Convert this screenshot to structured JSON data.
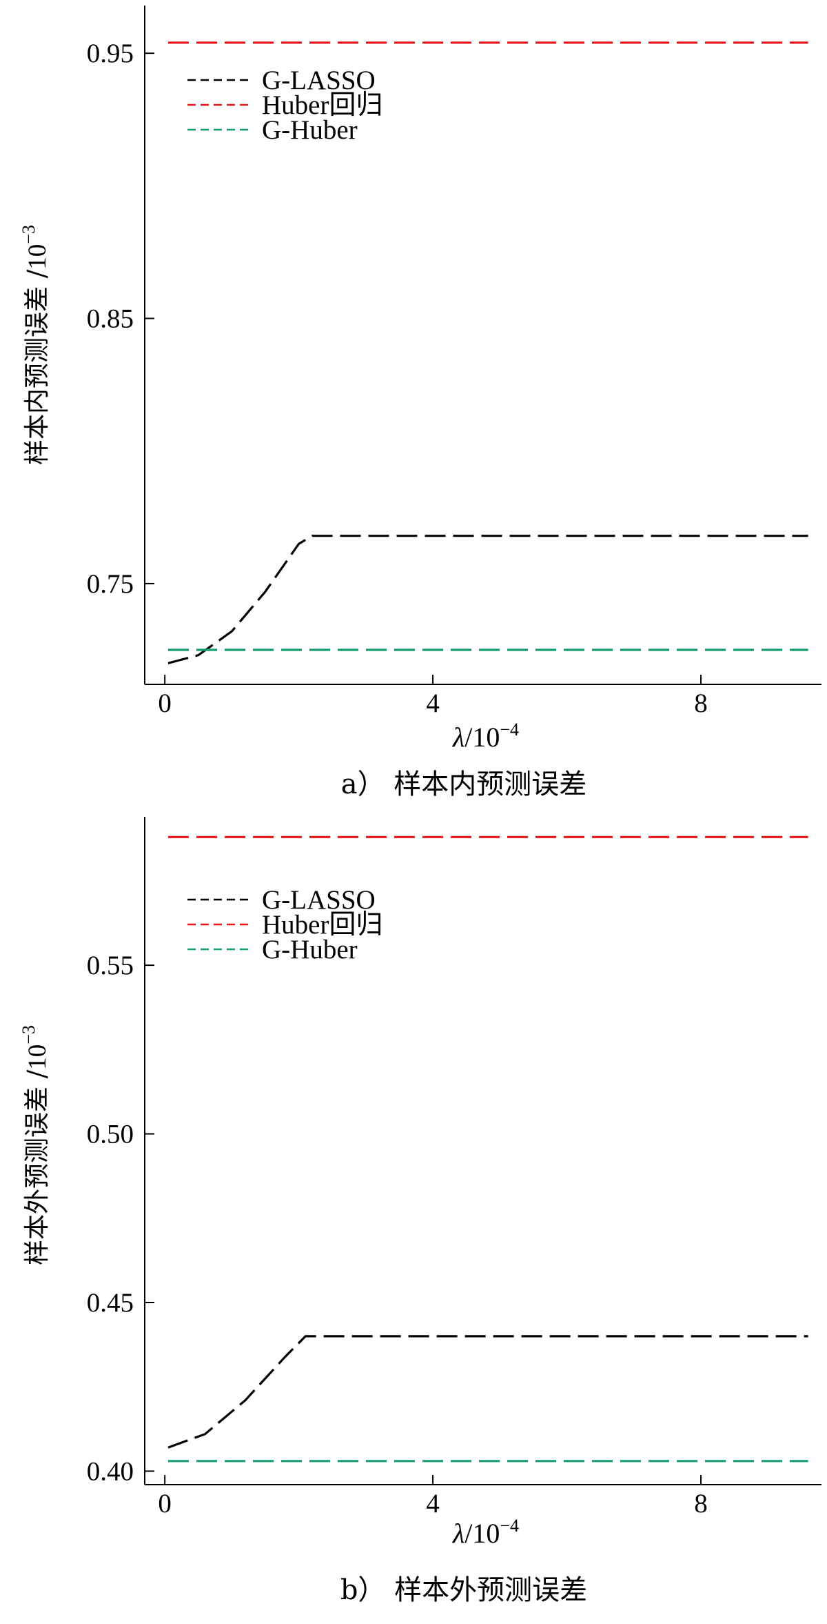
{
  "chart_data": [
    {
      "type": "line",
      "panel_caption": "a）  样本内预测误差",
      "ylabel_prefix": "样本内预测误差 /",
      "y_unit_base": "10",
      "y_unit_exp": "−3",
      "x_symbol": "λ",
      "x_unit_text": "/10",
      "x_unit_exp": "−4",
      "xlim": [
        -0.3,
        9.8
      ],
      "ylim": [
        0.712,
        0.968
      ],
      "xticks": [
        0,
        4,
        8
      ],
      "xtick_labels": [
        "0",
        "4",
        "8"
      ],
      "yticks": [
        0.75,
        0.85,
        0.95
      ],
      "ytick_labels": [
        "0.75",
        "0.85",
        "0.95"
      ],
      "legend_position": "top-left",
      "grid": false,
      "series": [
        {
          "name": "G-LASSO",
          "color": "#000000",
          "x": [
            0.05,
            0.5,
            1.0,
            1.5,
            2.0,
            2.2,
            3,
            4,
            5,
            6,
            7,
            8,
            9,
            9.6
          ],
          "y": [
            0.72,
            0.723,
            0.732,
            0.747,
            0.765,
            0.768,
            0.768,
            0.768,
            0.768,
            0.768,
            0.768,
            0.768,
            0.768,
            0.768
          ]
        },
        {
          "name": "Huber回归",
          "color": "#e8151b",
          "x": [
            0.05,
            9.6
          ],
          "y": [
            0.954,
            0.954
          ]
        },
        {
          "name": "G-Huber",
          "color": "#139d6b",
          "x": [
            0.05,
            9.6
          ],
          "y": [
            0.725,
            0.725
          ]
        }
      ]
    },
    {
      "type": "line",
      "panel_caption": "b）  样本外预测误差",
      "ylabel_prefix": "样本外预测误差 /",
      "y_unit_base": "10",
      "y_unit_exp": "−3",
      "x_symbol": "λ",
      "x_unit_text": "/10",
      "x_unit_exp": "−4",
      "xlim": [
        -0.3,
        9.8
      ],
      "ylim": [
        0.396,
        0.594
      ],
      "xticks": [
        0,
        4,
        8
      ],
      "xtick_labels": [
        "0",
        "4",
        "8"
      ],
      "yticks": [
        0.4,
        0.45,
        0.5,
        0.55
      ],
      "ytick_labels": [
        "0.40",
        "0.45",
        "0.50",
        "0.55"
      ],
      "legend_position": "top-left",
      "grid": false,
      "series": [
        {
          "name": "G-LASSO",
          "color": "#000000",
          "x": [
            0.05,
            0.6,
            1.2,
            1.8,
            2.1,
            3,
            4,
            5,
            6,
            7,
            8,
            9,
            9.6
          ],
          "y": [
            0.407,
            0.411,
            0.421,
            0.434,
            0.44,
            0.44,
            0.44,
            0.44,
            0.44,
            0.44,
            0.44,
            0.44,
            0.44
          ]
        },
        {
          "name": "Huber回归",
          "color": "#e8151b",
          "x": [
            0.05,
            9.6
          ],
          "y": [
            0.588,
            0.588
          ]
        },
        {
          "name": "G-Huber",
          "color": "#139d6b",
          "x": [
            0.05,
            9.6
          ],
          "y": [
            0.403,
            0.403
          ]
        }
      ]
    }
  ]
}
